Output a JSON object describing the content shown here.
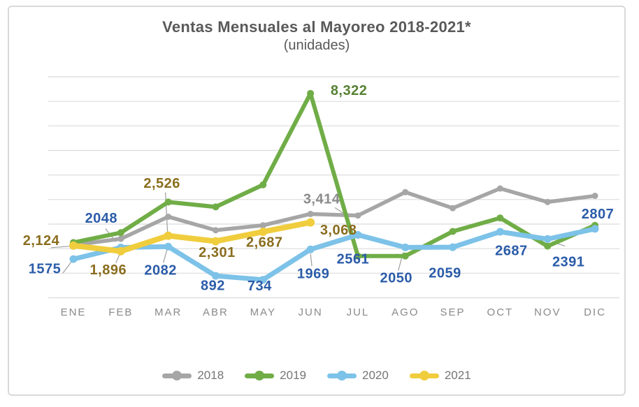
{
  "card": {
    "border_color": "#d9d9d9",
    "background": "#ffffff"
  },
  "chart_data": {
    "type": "line",
    "title": "Ventas Mensuales al Mayoreo 2018-2021*",
    "subtitle": "(unidades)",
    "categories": [
      "ENE",
      "FEB",
      "MAR",
      "ABR",
      "MAY",
      "JUN",
      "JUL",
      "AGO",
      "SEP",
      "OCT",
      "NOV",
      "DIC"
    ],
    "y_axis": {
      "min": 0,
      "max": 9000,
      "gridline_step": 1000,
      "tick_labels_visible": false,
      "gridlines": true
    },
    "legend_position": "bottom",
    "colors": {
      "gridline": "#dbdbdb",
      "leader_line": "#9e9e9e",
      "month_label": "#8a8a8a",
      "title_text": "#595959"
    },
    "series": [
      {
        "name": "2018",
        "color": "#a6a6a6",
        "label_color": "#8c8c8c",
        "values": [
          2150,
          2400,
          3300,
          2750,
          2950,
          3414,
          3350,
          4300,
          3650,
          4450,
          3900,
          4150
        ],
        "data_labels": {
          "JUN": "3,414"
        }
      },
      {
        "name": "2019",
        "color": "#70ad47",
        "label_color": "#568233",
        "values": [
          2250,
          2650,
          3900,
          3700,
          4600,
          8322,
          1700,
          1700,
          2700,
          3250,
          2100,
          2950
        ],
        "data_labels": {
          "JUN": "8,322"
        }
      },
      {
        "name": "2020",
        "color": "#7dc2e8",
        "label_color": "#2b5ca8",
        "values": [
          1575,
          2048,
          2082,
          892,
          734,
          1969,
          2561,
          2050,
          2059,
          2687,
          2391,
          2807
        ],
        "data_labels": {
          "ENE": "1575",
          "FEB": "2048",
          "MAR": "2082",
          "ABR": "892",
          "MAY": "734",
          "JUN": "1969",
          "JUL": "2561",
          "AGO": "2050",
          "SEP": "2059",
          "OCT": "2687",
          "NOV": "2391",
          "DIC": "2807"
        }
      },
      {
        "name": "2021",
        "color": "#f0cd3d",
        "label_color": "#8a6d1e",
        "values": [
          2124,
          1896,
          2526,
          2301,
          2687,
          3068,
          null,
          null,
          null,
          null,
          null,
          null
        ],
        "data_labels": {
          "ENE": "2,124",
          "FEB": "1,896",
          "MAR": "2,526",
          "ABR": "2,301",
          "MAY": "2,687",
          "JUN": "3,068"
        }
      }
    ]
  }
}
